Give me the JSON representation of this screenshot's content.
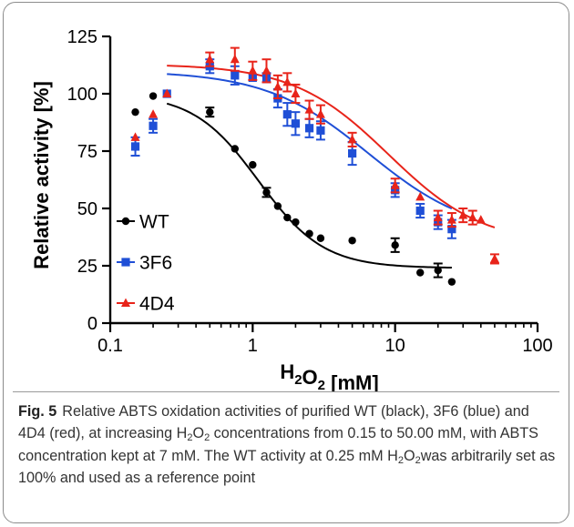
{
  "chart_data": {
    "type": "scatter",
    "xlabel": "H2O2 [mM]",
    "ylabel": "Relative activity [%]",
    "x_scale": "log",
    "xlim": [
      0.1,
      100
    ],
    "ylim": [
      0,
      125
    ],
    "x_ticks": [
      "0.1",
      "1",
      "10",
      "100"
    ],
    "y_ticks": [
      "0",
      "25",
      "50",
      "75",
      "100",
      "125"
    ],
    "legend_position": "left",
    "series": [
      {
        "name": "WT",
        "color": "#000000",
        "marker": "circle",
        "points": [
          {
            "x": 0.15,
            "y": 92,
            "err": 0
          },
          {
            "x": 0.2,
            "y": 99,
            "err": 0
          },
          {
            "x": 0.25,
            "y": 100,
            "err": 0
          },
          {
            "x": 0.5,
            "y": 92,
            "err": 2
          },
          {
            "x": 0.75,
            "y": 76,
            "err": 0
          },
          {
            "x": 1.0,
            "y": 69,
            "err": 0
          },
          {
            "x": 1.25,
            "y": 57,
            "err": 2
          },
          {
            "x": 1.5,
            "y": 51,
            "err": 0
          },
          {
            "x": 1.75,
            "y": 46,
            "err": 0
          },
          {
            "x": 2.0,
            "y": 44,
            "err": 0
          },
          {
            "x": 2.5,
            "y": 39,
            "err": 0
          },
          {
            "x": 3.0,
            "y": 37,
            "err": 0
          },
          {
            "x": 5.0,
            "y": 36,
            "err": 0
          },
          {
            "x": 10.0,
            "y": 34,
            "err": 3
          },
          {
            "x": 15.0,
            "y": 22,
            "err": 0
          },
          {
            "x": 20.0,
            "y": 23,
            "err": 3
          },
          {
            "x": 25.0,
            "y": 18,
            "err": 0
          }
        ],
        "fit": {
          "top": 100,
          "bottom": 24,
          "ec50": 1.1,
          "hill": 1.9,
          "x_range": [
            0.25,
            25
          ]
        }
      },
      {
        "name": "3F6",
        "color": "#1f4fd6",
        "marker": "square",
        "points": [
          {
            "x": 0.15,
            "y": 77,
            "err": 4
          },
          {
            "x": 0.2,
            "y": 86,
            "err": 3
          },
          {
            "x": 0.25,
            "y": 100,
            "err": 0
          },
          {
            "x": 0.5,
            "y": 112,
            "err": 3
          },
          {
            "x": 0.75,
            "y": 108,
            "err": 4
          },
          {
            "x": 1.0,
            "y": 107,
            "err": 0
          },
          {
            "x": 1.25,
            "y": 107,
            "err": 2
          },
          {
            "x": 1.5,
            "y": 98,
            "err": 4
          },
          {
            "x": 1.75,
            "y": 91,
            "err": 5
          },
          {
            "x": 2.0,
            "y": 87,
            "err": 5
          },
          {
            "x": 2.5,
            "y": 85,
            "err": 4
          },
          {
            "x": 3.0,
            "y": 84,
            "err": 4
          },
          {
            "x": 5.0,
            "y": 74,
            "err": 5
          },
          {
            "x": 10.0,
            "y": 58,
            "err": 3
          },
          {
            "x": 15.0,
            "y": 49,
            "err": 3
          },
          {
            "x": 20.0,
            "y": 44,
            "err": 3
          },
          {
            "x": 25.0,
            "y": 41,
            "err": 4
          }
        ],
        "fit": {
          "top": 110,
          "bottom": 38,
          "ec50": 6.5,
          "hill": 1.2,
          "x_range": [
            0.25,
            25
          ]
        }
      },
      {
        "name": "4D4",
        "color": "#e8241a",
        "marker": "triangle",
        "points": [
          {
            "x": 0.15,
            "y": 81,
            "err": 0
          },
          {
            "x": 0.2,
            "y": 91,
            "err": 0
          },
          {
            "x": 0.25,
            "y": 100,
            "err": 0
          },
          {
            "x": 0.5,
            "y": 115,
            "err": 3
          },
          {
            "x": 0.75,
            "y": 115,
            "err": 5
          },
          {
            "x": 1.0,
            "y": 110,
            "err": 4
          },
          {
            "x": 1.25,
            "y": 110,
            "err": 5
          },
          {
            "x": 1.5,
            "y": 103,
            "err": 5
          },
          {
            "x": 1.75,
            "y": 105,
            "err": 4
          },
          {
            "x": 2.0,
            "y": 100,
            "err": 4
          },
          {
            "x": 2.5,
            "y": 93,
            "err": 4
          },
          {
            "x": 3.0,
            "y": 91,
            "err": 4
          },
          {
            "x": 5.0,
            "y": 80,
            "err": 3
          },
          {
            "x": 10.0,
            "y": 60,
            "err": 3
          },
          {
            "x": 15.0,
            "y": 55,
            "err": 0
          },
          {
            "x": 20.0,
            "y": 46,
            "err": 3
          },
          {
            "x": 25.0,
            "y": 45,
            "err": 3
          },
          {
            "x": 30.0,
            "y": 47,
            "err": 3
          },
          {
            "x": 35.0,
            "y": 46,
            "err": 3
          },
          {
            "x": 40.0,
            "y": 45,
            "err": 0
          },
          {
            "x": 50.0,
            "y": 28,
            "err": 2
          }
        ],
        "fit": {
          "top": 113,
          "bottom": 34,
          "ec50": 9.0,
          "hill": 1.3,
          "x_range": [
            0.25,
            50
          ]
        }
      }
    ]
  },
  "caption": {
    "label": "Fig. 5",
    "parts": [
      {
        "t": "Relative ABTS oxidation activities of purified WT (black), 3F6 (blue) and 4D4 (red), at increasing H"
      },
      {
        "t": "2",
        "sub": true
      },
      {
        "t": "O"
      },
      {
        "t": "2",
        "sub": true
      },
      {
        "t": " concentrations from 0.15 to 50.00 mM, with ABTS concentration kept at 7 mM. The WT activity at 0.25 mM H"
      },
      {
        "t": "2",
        "sub": true
      },
      {
        "t": "O"
      },
      {
        "t": "2",
        "sub": true
      },
      {
        "t": "was arbitrarily set as 100% and used as a reference point"
      }
    ]
  }
}
